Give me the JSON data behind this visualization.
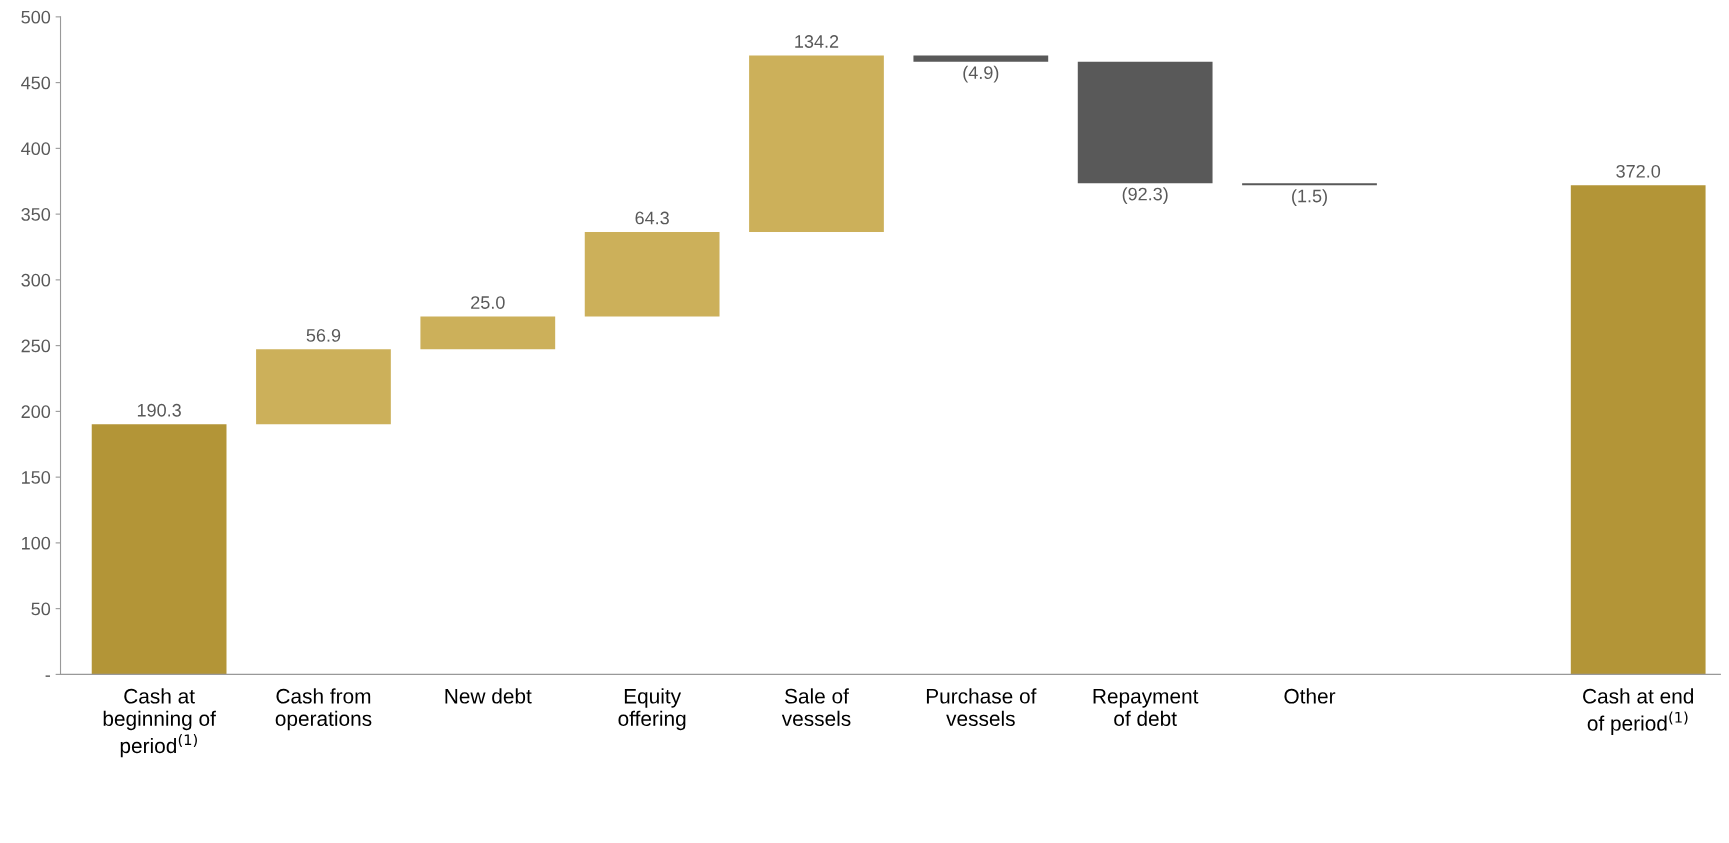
{
  "chart_data": {
    "type": "bar",
    "categories": [
      "Cash at\nbeginning of\nperiod$^{(1)}$",
      "Cash from\noperations",
      "New debt",
      "Equity\noffering",
      "Sale of\nvessels",
      "Purchase of\nvessels",
      "Repayment\nof debt",
      "Other",
      null,
      "Cash at end\nof period$^{(1)}$"
    ],
    "values": [
      190.3,
      56.9,
      25.0,
      64.3,
      134.2,
      -4.9,
      -92.3,
      -1.5,
      null,
      372.0
    ],
    "base": [
      0,
      190.3,
      247.2,
      272.2,
      336.5,
      470.7,
      465.8,
      373.5,
      null,
      0
    ],
    "colors": [
      "#b39537",
      "#ccb05a",
      "#ccb05a",
      "#ccb05a",
      "#ccb05a",
      "#595959",
      "#595959",
      "#595959",
      null,
      "#b39537"
    ],
    "value_labels": [
      "190.3",
      "56.9",
      "25.0",
      "64.3",
      "134.2",
      "(4.9)",
      "(92.3)",
      "(1.5)",
      null,
      "372.0"
    ],
    "ylim": [
      0,
      500
    ],
    "yticks": [
      {
        "value": 0,
        "label": "-"
      },
      50,
      100,
      150,
      200,
      250,
      300,
      350,
      400,
      450,
      500
    ],
    "grid": false,
    "legend": false
  }
}
